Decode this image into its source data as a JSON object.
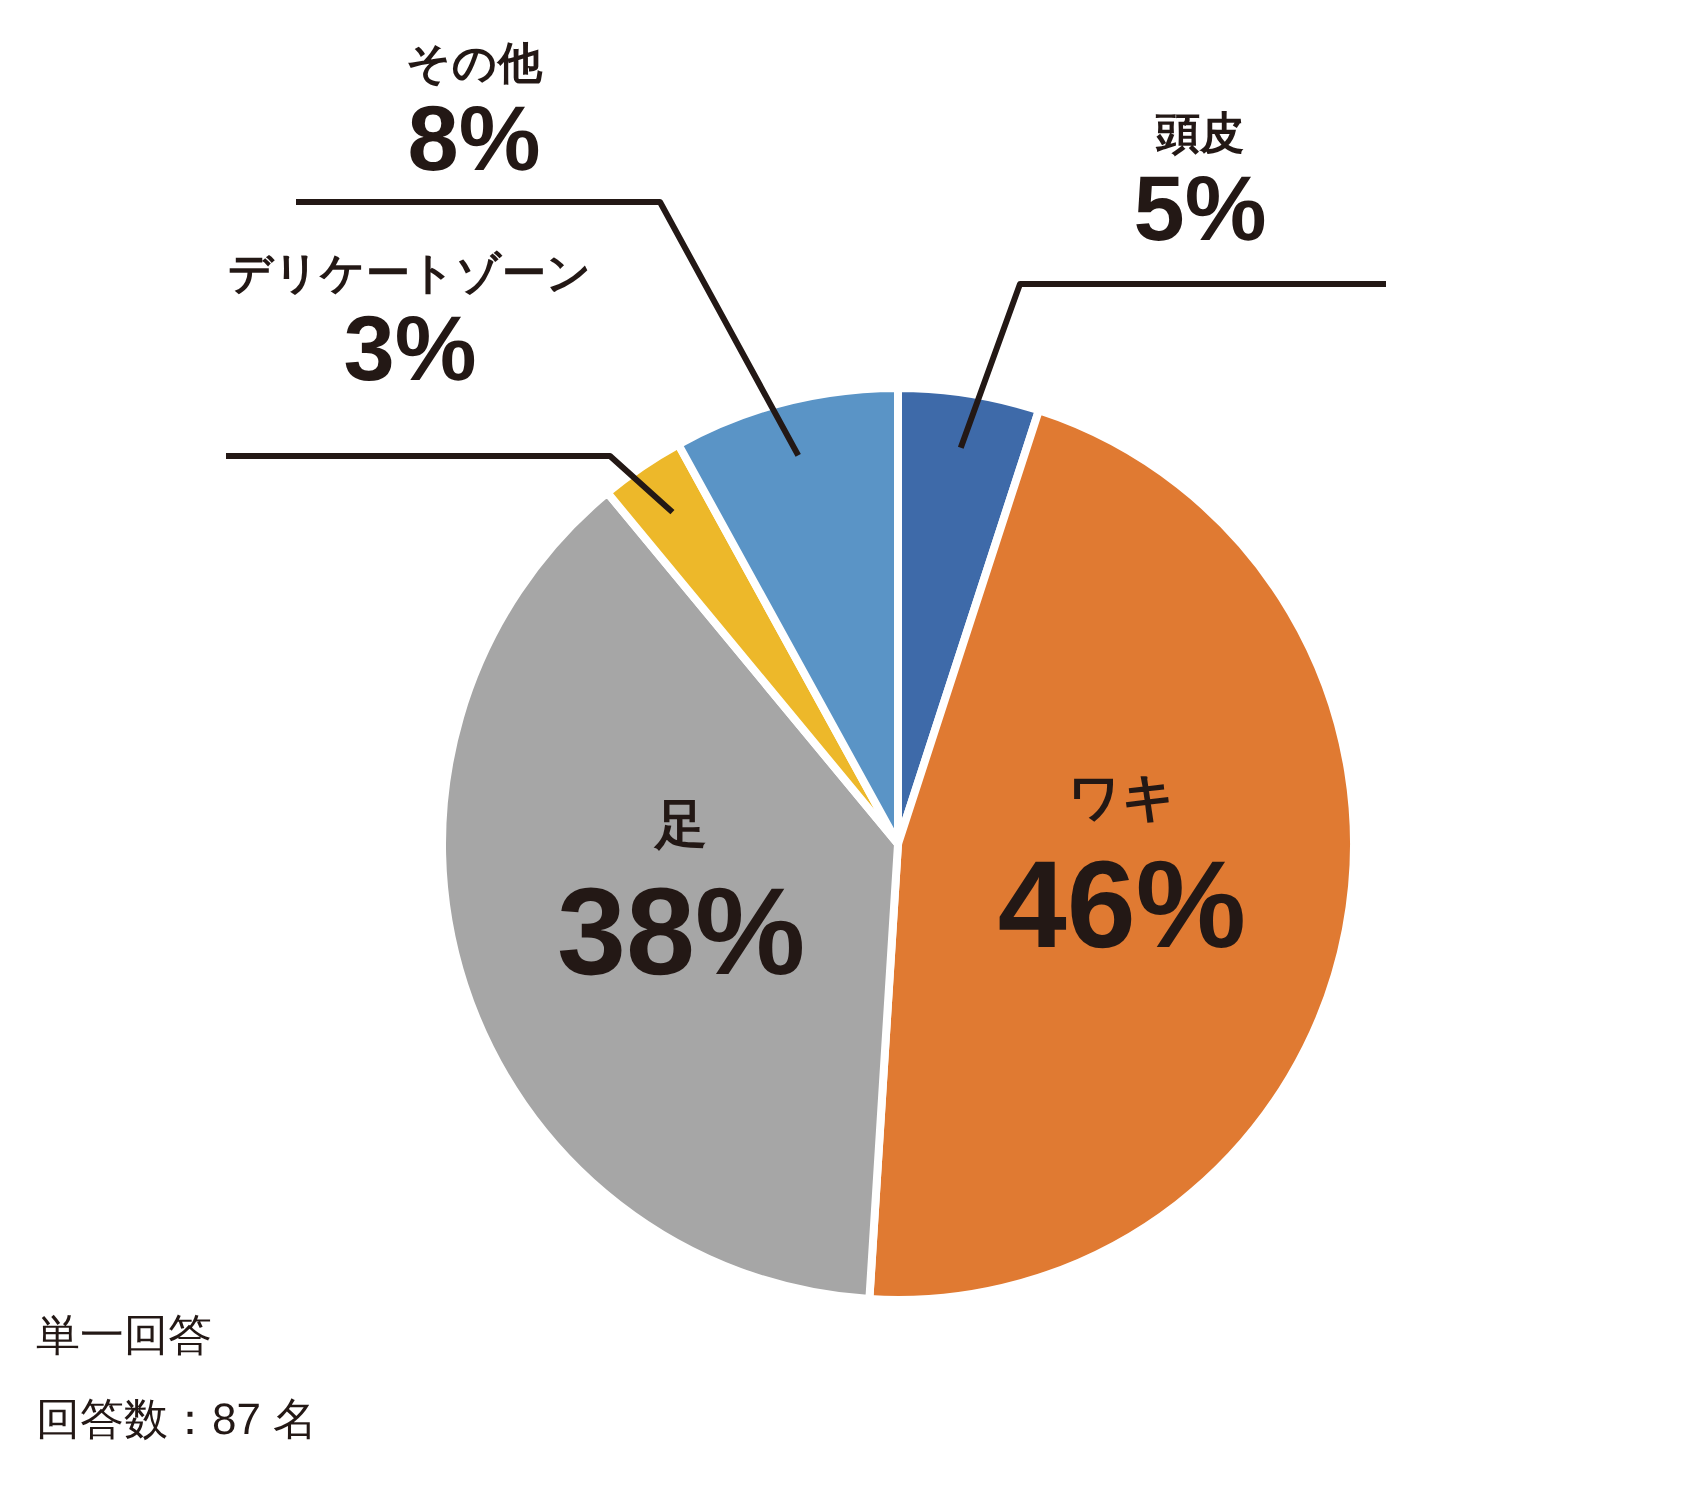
{
  "chart_data": {
    "type": "pie",
    "categories": [
      "頭皮",
      "ワキ",
      "足",
      "デリケートゾーン",
      "その他"
    ],
    "values": [
      5,
      46,
      38,
      3,
      8
    ],
    "colors": [
      "#3e6aa9",
      "#e07a32",
      "#a6a6a6",
      "#edb82a",
      "#5a94c6"
    ],
    "value_labels": [
      "5%",
      "46%",
      "38%",
      "3%",
      "8%"
    ],
    "annotations": [
      "単一回答",
      "回答数：87 名"
    ]
  }
}
